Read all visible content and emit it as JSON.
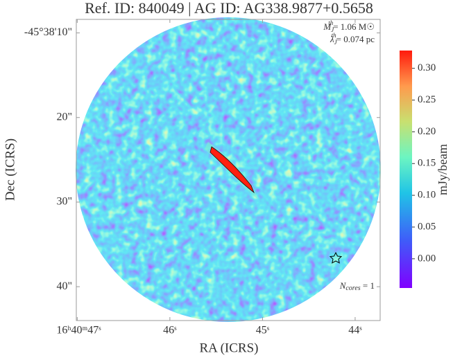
{
  "chart_data": {
    "type": "image",
    "title": "Ref. ID: 840049 | AG ID: AG338.9877+0.5658",
    "x_label": "RA (ICRS)",
    "y_label": "Dec (ICRS)",
    "xlim": [
      47.01,
      43.73
    ],
    "xticks": [
      {
        "value": 47,
        "label": "16ʰ40ᵐ47ˢ"
      },
      {
        "value": 46,
        "label": "46ˢ"
      },
      {
        "value": 45,
        "label": "45ˢ"
      },
      {
        "value": 44,
        "label": "44ˢ"
      }
    ],
    "ylim": [
      8.4,
      44.0
    ],
    "yticks": [
      {
        "value": 10,
        "label": "-45°38'10\""
      },
      {
        "value": 20,
        "label": "20\""
      },
      {
        "value": 30,
        "label": "30\""
      },
      {
        "value": 40,
        "label": "40\""
      }
    ],
    "colorbar": {
      "label": "mJy/beam",
      "lim": [
        -0.046,
        0.328
      ],
      "ticks": [
        {
          "value": 0,
          "label": "0.00"
        },
        0.05,
        {
          "value": 0.1,
          "label": "0.10"
        },
        0.15,
        {
          "value": 0.2,
          "label": "0.20"
        },
        0.25,
        {
          "value": 0.3,
          "label": "0.30"
        }
      ]
    },
    "annotations": [
      {
        "symbol": "M",
        "sub": "J",
        "sup": "th",
        "text": "= 1.06 M☉"
      },
      {
        "symbol": "λ",
        "sub": "J",
        "sup": "th",
        "text": "= 0.074 pc"
      },
      {
        "symbol": "N",
        "sub": "cores",
        "text": " = 1"
      }
    ]
  }
}
